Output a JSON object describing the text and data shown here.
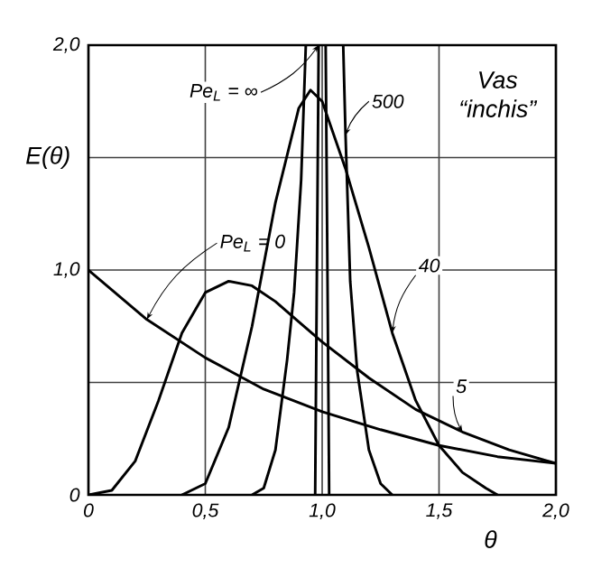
{
  "chart_data": {
    "type": "line",
    "xlabel": "θ",
    "ylabel": "E(θ)",
    "xlim": [
      0,
      2
    ],
    "ylim": [
      0,
      2
    ],
    "xticks": [
      0,
      {
        "value": 0.5,
        "label": "0,5"
      },
      {
        "value": 1,
        "label": "1,0"
      },
      {
        "value": 1.5,
        "label": "1,5"
      },
      {
        "value": 2,
        "label": "2,0"
      }
    ],
    "yticks": [
      0,
      {
        "value": 0.5,
        "label": null
      },
      {
        "value": 1,
        "label": "1,0"
      },
      {
        "value": 1.5,
        "label": null
      },
      {
        "value": 2,
        "label": "2,0"
      }
    ],
    "grid": true,
    "marker": "none",
    "line_style": "solid",
    "annotations": [
      "Vas “inchis”"
    ],
    "series": [
      {
        "name": "Pe$_{L}$ = 0",
        "color": "#000000",
        "x": [
          0,
          0.25,
          0.5,
          0.75,
          1,
          1.25,
          1.5,
          1.75,
          2
        ],
        "values": [
          1.0,
          0.78,
          0.61,
          0.47,
          0.37,
          0.29,
          0.22,
          0.17,
          0.14
        ]
      },
      {
        "name": "5",
        "color": "#000000",
        "x": [
          0,
          0.1,
          0.2,
          0.3,
          0.4,
          0.5,
          0.6,
          0.7,
          0.8,
          0.9,
          1.0,
          1.2,
          1.4,
          1.6,
          1.8,
          2.0
        ],
        "values": [
          0,
          0.02,
          0.15,
          0.42,
          0.72,
          0.9,
          0.95,
          0.93,
          0.86,
          0.77,
          0.68,
          0.52,
          0.38,
          0.28,
          0.2,
          0.14
        ]
      },
      {
        "name": "40",
        "color": "#000000",
        "x": [
          0.4,
          0.5,
          0.6,
          0.7,
          0.8,
          0.9,
          0.95,
          1.0,
          1.1,
          1.2,
          1.3,
          1.4,
          1.5,
          1.6,
          1.7,
          1.75
        ],
        "values": [
          0,
          0.05,
          0.3,
          0.75,
          1.3,
          1.72,
          1.8,
          1.75,
          1.45,
          1.1,
          0.72,
          0.42,
          0.22,
          0.1,
          0.03,
          0
        ]
      },
      {
        "name": "500",
        "color": "#000000",
        "x": [
          0.7,
          0.75,
          0.8,
          0.85,
          0.88,
          0.91,
          0.93,
          1.0,
          1.09,
          1.1,
          1.12,
          1.15,
          1.2,
          1.25,
          1.3
        ],
        "values": [
          0,
          0.03,
          0.2,
          0.6,
          0.9,
          1.4,
          2.0,
          null,
          2.0,
          1.6,
          0.95,
          0.55,
          0.2,
          0.05,
          0
        ]
      },
      {
        "name": "Pe$_{L}$ = ∞",
        "color": "#000000",
        "x": [
          0.97,
          0.985,
          1.0,
          1.015,
          1.03
        ],
        "values": [
          0,
          2.0,
          null,
          2.0,
          0
        ]
      }
    ]
  }
}
